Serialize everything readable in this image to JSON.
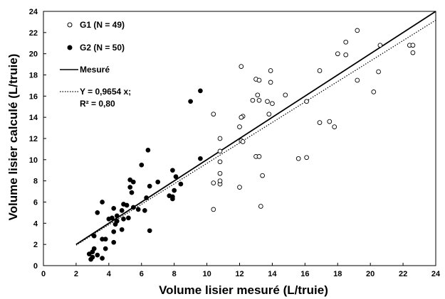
{
  "chart_data": {
    "type": "scatter",
    "xlabel": "Volume lisier mesuré (L/truie)",
    "ylabel": "Volume lisier calculé (L/truie)",
    "xlim": [
      0,
      24
    ],
    "ylim": [
      0,
      24
    ],
    "x_ticks": [
      "0",
      "2",
      "4",
      "6",
      "8",
      "10",
      "12",
      "14",
      "16",
      "18",
      "20",
      "22",
      "24"
    ],
    "y_ticks": [
      "0",
      "2",
      "4",
      "6",
      "8",
      "10",
      "12",
      "14",
      "16",
      "18",
      "20",
      "22",
      "24"
    ],
    "grid": false,
    "legend_position": "top-left",
    "legend": {
      "g1": "G1 (N = 49)",
      "g2": "G2 (N = 50)",
      "measured": "Mesuré",
      "fit_line1": "Y = 0,9654 x;",
      "fit_line2": "R² = 0,80"
    },
    "series": [
      {
        "name": "G1 (N = 49)",
        "marker": "open-circle",
        "points": [
          [
            19.2,
            22.2
          ],
          [
            18.5,
            21.1
          ],
          [
            20.6,
            20.8
          ],
          [
            22.4,
            20.8
          ],
          [
            22.6,
            20.8
          ],
          [
            18.5,
            19.9
          ],
          [
            18.0,
            20.0
          ],
          [
            22.6,
            20.1
          ],
          [
            12.1,
            18.8
          ],
          [
            13.9,
            18.4
          ],
          [
            16.9,
            18.4
          ],
          [
            20.5,
            18.3
          ],
          [
            13.9,
            17.3
          ],
          [
            19.2,
            17.5
          ],
          [
            20.2,
            16.4
          ],
          [
            13.0,
            17.6
          ],
          [
            13.2,
            17.5
          ],
          [
            14.8,
            16.1
          ],
          [
            13.1,
            16.1
          ],
          [
            12.8,
            15.6
          ],
          [
            13.2,
            15.6
          ],
          [
            13.7,
            15.5
          ],
          [
            14.0,
            15.3
          ],
          [
            16.1,
            15.5
          ],
          [
            10.4,
            14.3
          ],
          [
            13.8,
            14.3
          ],
          [
            12.2,
            14.1
          ],
          [
            12.1,
            14.0
          ],
          [
            16.9,
            13.5
          ],
          [
            17.5,
            13.6
          ],
          [
            17.8,
            13.1
          ],
          [
            12.0,
            13.1
          ],
          [
            10.8,
            12.0
          ],
          [
            12.1,
            11.8
          ],
          [
            12.2,
            11.7
          ],
          [
            10.8,
            10.8
          ],
          [
            13.0,
            10.3
          ],
          [
            13.2,
            10.3
          ],
          [
            15.6,
            10.1
          ],
          [
            16.1,
            10.2
          ],
          [
            10.8,
            9.8
          ],
          [
            10.8,
            8.7
          ],
          [
            13.4,
            8.5
          ],
          [
            10.4,
            7.8
          ],
          [
            10.8,
            7.7
          ],
          [
            10.8,
            8.0
          ],
          [
            12.0,
            7.4
          ],
          [
            13.3,
            5.6
          ],
          [
            10.4,
            5.3
          ]
        ]
      },
      {
        "name": "G2 (N = 50)",
        "marker": "filled-circle",
        "points": [
          [
            9.6,
            16.5
          ],
          [
            9.0,
            15.5
          ],
          [
            6.4,
            10.9
          ],
          [
            9.6,
            10.1
          ],
          [
            6.0,
            9.5
          ],
          [
            7.9,
            9.0
          ],
          [
            8.1,
            8.4
          ],
          [
            5.3,
            8.1
          ],
          [
            5.5,
            7.9
          ],
          [
            7.0,
            7.9
          ],
          [
            5.3,
            7.4
          ],
          [
            6.5,
            7.5
          ],
          [
            8.4,
            7.7
          ],
          [
            8.0,
            7.1
          ],
          [
            7.7,
            6.6
          ],
          [
            7.9,
            6.5
          ],
          [
            7.9,
            6.3
          ],
          [
            5.4,
            6.9
          ],
          [
            6.3,
            6.4
          ],
          [
            3.6,
            6.0
          ],
          [
            4.9,
            5.8
          ],
          [
            5.1,
            5.7
          ],
          [
            5.5,
            5.5
          ],
          [
            5.8,
            5.3
          ],
          [
            6.2,
            5.2
          ],
          [
            4.3,
            5.4
          ],
          [
            4.8,
            5.2
          ],
          [
            3.3,
            5.0
          ],
          [
            4.5,
            4.7
          ],
          [
            4.0,
            4.4
          ],
          [
            4.2,
            4.5
          ],
          [
            4.5,
            4.2
          ],
          [
            4.9,
            4.4
          ],
          [
            4.4,
            3.9
          ],
          [
            5.2,
            4.5
          ],
          [
            6.5,
            3.3
          ],
          [
            4.8,
            3.4
          ],
          [
            4.3,
            3.2
          ],
          [
            3.1,
            2.8
          ],
          [
            3.6,
            2.5
          ],
          [
            3.8,
            2.5
          ],
          [
            4.3,
            2.2
          ],
          [
            3.8,
            1.6
          ],
          [
            3.1,
            1.6
          ],
          [
            3.0,
            1.3
          ],
          [
            2.8,
            1.1
          ],
          [
            3.3,
            1.0
          ],
          [
            3.0,
            0.8
          ],
          [
            2.9,
            0.6
          ],
          [
            3.6,
            0.7
          ]
        ]
      }
    ],
    "lines": [
      {
        "name": "Mesuré",
        "style": "solid",
        "points": [
          [
            2.0,
            2.0
          ],
          [
            24.0,
            24.0
          ]
        ]
      },
      {
        "name": "Y = 0,9654 x",
        "style": "dotted",
        "points": [
          [
            2.0,
            1.93
          ],
          [
            24.0,
            23.17
          ]
        ]
      }
    ]
  }
}
